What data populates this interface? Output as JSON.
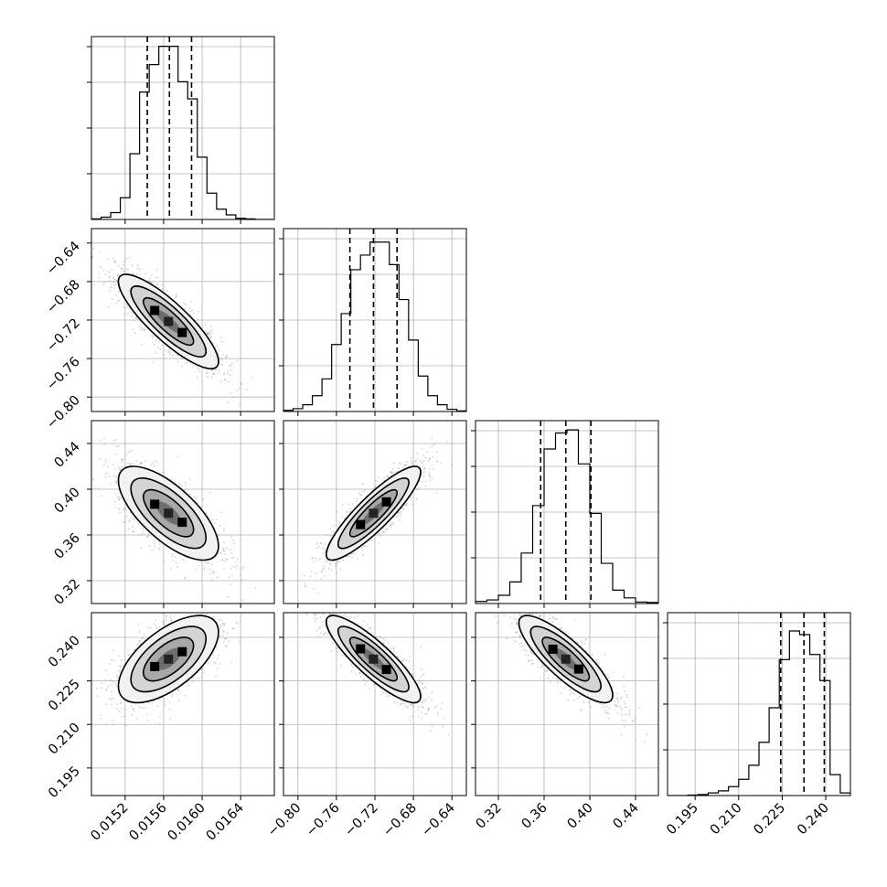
{
  "chart_data": {
    "type": "corner",
    "grid_shown": true,
    "parameters": [
      {
        "range": [
          0.01485,
          0.01675
        ],
        "ticks": [
          0.0152,
          0.0156,
          0.016,
          0.0164
        ],
        "tick_labels": [
          "0.0152",
          "0.0156",
          "0.0160",
          "0.0164"
        ],
        "mean": 0.01565,
        "sd": 0.00026,
        "quantiles": [
          0.01543,
          0.01566,
          0.01589
        ],
        "hist_bin_edges": [
          0.01485,
          0.01495,
          0.01505,
          0.01515,
          0.01525,
          0.01535,
          0.01545,
          0.01555,
          0.01565,
          0.01575,
          0.01585,
          0.01595,
          0.01605,
          0.01615,
          0.01625,
          0.01635,
          0.01645,
          0.01655,
          0.01665,
          0.01675
        ],
        "hist_counts": [
          1,
          4,
          12,
          38,
          115,
          223,
          271,
          303,
          303,
          241,
          211,
          109,
          46,
          18,
          8,
          2,
          1,
          0,
          0
        ],
        "hist_ymax": 320
      },
      {
        "range": [
          -0.815,
          -0.625
        ],
        "ticks": [
          -0.8,
          -0.76,
          -0.72,
          -0.68,
          -0.64
        ],
        "tick_labels": [
          "−0.80",
          "−0.76",
          "−0.72",
          "−0.68",
          "−0.64"
        ],
        "mean": -0.7215,
        "sd": 0.0245,
        "quantiles": [
          -0.746,
          -0.7215,
          -0.697
        ],
        "hist_bin_edges": [
          -0.815,
          -0.805,
          -0.795,
          -0.785,
          -0.775,
          -0.765,
          -0.755,
          -0.745,
          -0.735,
          -0.725,
          -0.715,
          -0.705,
          -0.695,
          -0.685,
          -0.675,
          -0.665,
          -0.655,
          -0.645,
          -0.635,
          -0.625
        ],
        "hist_counts": [
          2,
          5,
          12,
          28,
          58,
          119,
          174,
          252,
          278,
          301,
          301,
          261,
          199,
          127,
          63,
          28,
          12,
          4,
          1
        ],
        "hist_ymax": 325
      },
      {
        "range": [
          0.3,
          0.46
        ],
        "ticks": [
          0.32,
          0.36,
          0.4,
          0.44
        ],
        "tick_labels": [
          "0.32",
          "0.36",
          "0.40",
          "0.44"
        ],
        "mean": 0.379,
        "sd": 0.0205,
        "quantiles": [
          0.357,
          0.379,
          0.401
        ],
        "hist_bin_edges": [
          0.3,
          0.31,
          0.32,
          0.33,
          0.34,
          0.35,
          0.36,
          0.37,
          0.38,
          0.39,
          0.4,
          0.41,
          0.42,
          0.43,
          0.44,
          0.45,
          0.46
        ],
        "hist_counts": [
          4,
          7,
          16,
          42,
          98,
          190,
          300,
          331,
          337,
          271,
          175,
          78,
          26,
          11,
          3,
          2
        ],
        "hist_ymax": 355
      },
      {
        "range": [
          0.1855,
          0.2485
        ],
        "ticks": [
          0.195,
          0.21,
          0.225,
          0.24
        ],
        "tick_labels": [
          "0.195",
          "0.210",
          "0.225",
          "0.240"
        ],
        "mean": 0.2325,
        "sd": 0.0075,
        "quantiles": [
          0.2245,
          0.2325,
          0.2395
        ],
        "hist_bin_edges": [
          0.1855,
          0.189,
          0.1925,
          0.196,
          0.1995,
          0.203,
          0.2065,
          0.21,
          0.2135,
          0.217,
          0.2205,
          0.224,
          0.2275,
          0.231,
          0.2345,
          0.238,
          0.2415,
          0.245,
          0.2485
        ],
        "hist_counts": [
          0,
          0,
          1,
          2,
          5,
          9,
          17,
          31,
          58,
          102,
          168,
          260,
          315,
          308,
          270,
          220,
          40,
          5
        ],
        "hist_ymax": 350
      }
    ],
    "correlations": {
      "1-0": -0.85,
      "2-0": -0.7,
      "2-1": 0.88,
      "3-0": 0.62,
      "3-1": -0.86,
      "3-2": -0.83
    },
    "contour_levels_sigma": [
      0.5,
      1.0,
      1.5,
      2.0
    ],
    "samples_per_panel": 1400
  }
}
